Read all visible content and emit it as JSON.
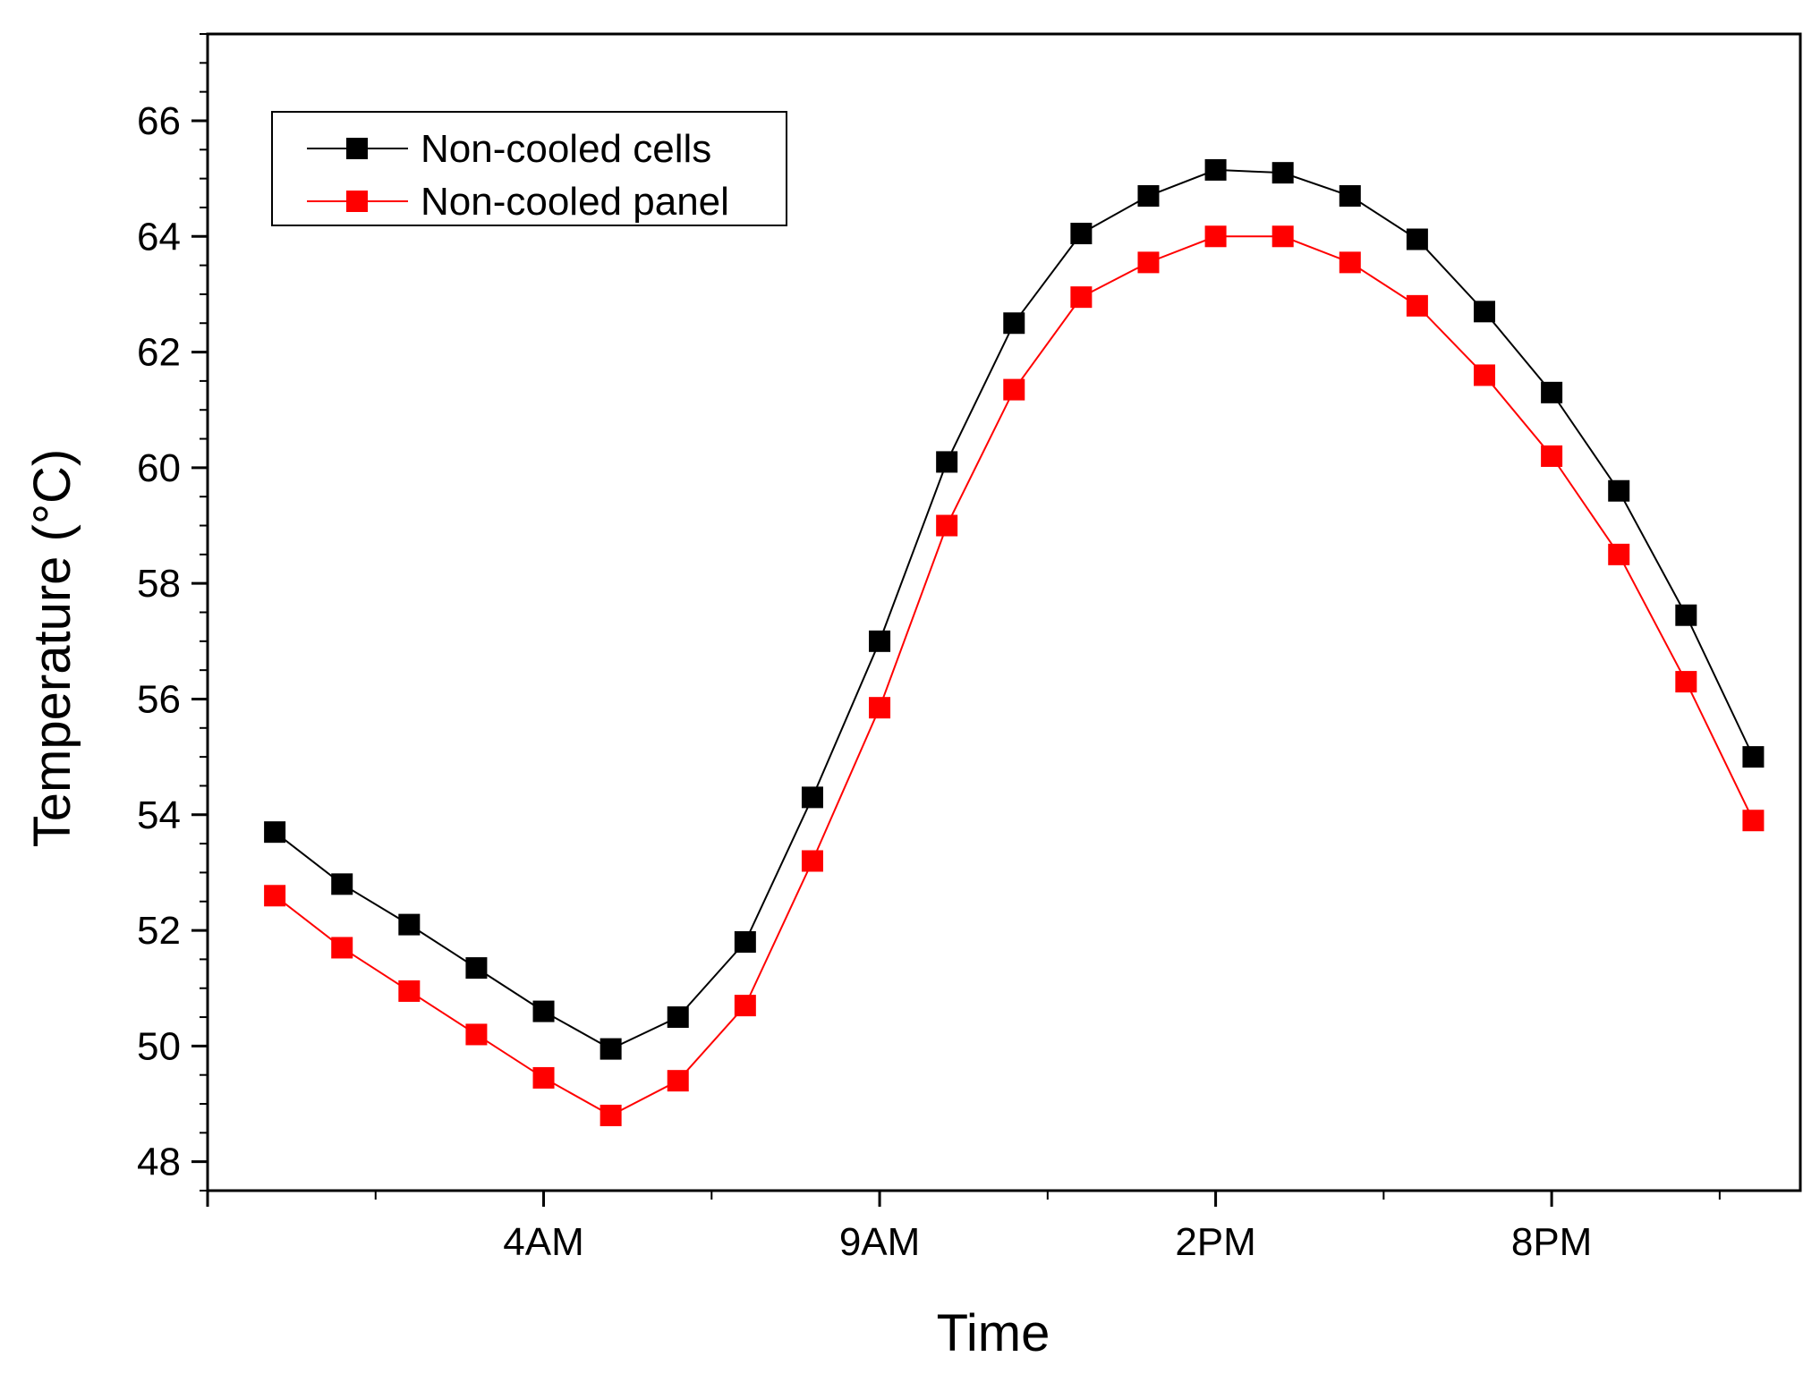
{
  "chart_data": {
    "type": "line",
    "title": "",
    "xlabel": "Time",
    "ylabel": "Temperature (°C)",
    "x": [
      1,
      2,
      3,
      4,
      5,
      6,
      7,
      8,
      9,
      10,
      11,
      12,
      13,
      14,
      15,
      16,
      17,
      18,
      19,
      20,
      21,
      22,
      23
    ],
    "xlim": [
      0,
      23.7
    ],
    "ylim": [
      47.5,
      67.5
    ],
    "x_ticks": [
      {
        "x": 5,
        "label": "4AM"
      },
      {
        "x": 10,
        "label": "9AM"
      },
      {
        "x": 15,
        "label": "2PM"
      },
      {
        "x": 20,
        "label": "8PM"
      }
    ],
    "y_ticks": [
      48,
      50,
      52,
      54,
      56,
      58,
      60,
      62,
      64,
      66
    ],
    "y_tick_labels": [
      "48",
      "50",
      "52",
      "54",
      "56",
      "58",
      "60",
      "62",
      "64",
      "66"
    ],
    "grid": false,
    "legend_position": "top-left",
    "series": [
      {
        "name": "Non-cooled cells",
        "color": "#000000",
        "marker": "square",
        "values": [
          53.7,
          52.8,
          52.1,
          51.35,
          50.6,
          49.95,
          50.5,
          51.8,
          54.3,
          57.0,
          60.1,
          62.5,
          64.05,
          64.7,
          65.15,
          65.1,
          64.7,
          63.95,
          62.7,
          61.3,
          59.6,
          57.45,
          55.0
        ]
      },
      {
        "name": "Non-cooled panel",
        "color": "#ff0000",
        "marker": "square",
        "values": [
          52.6,
          51.7,
          50.95,
          50.2,
          49.45,
          48.8,
          49.4,
          50.7,
          53.2,
          55.85,
          59.0,
          61.35,
          62.95,
          63.55,
          64.0,
          64.0,
          63.55,
          62.8,
          61.6,
          60.2,
          58.5,
          56.3,
          53.9
        ]
      }
    ]
  }
}
